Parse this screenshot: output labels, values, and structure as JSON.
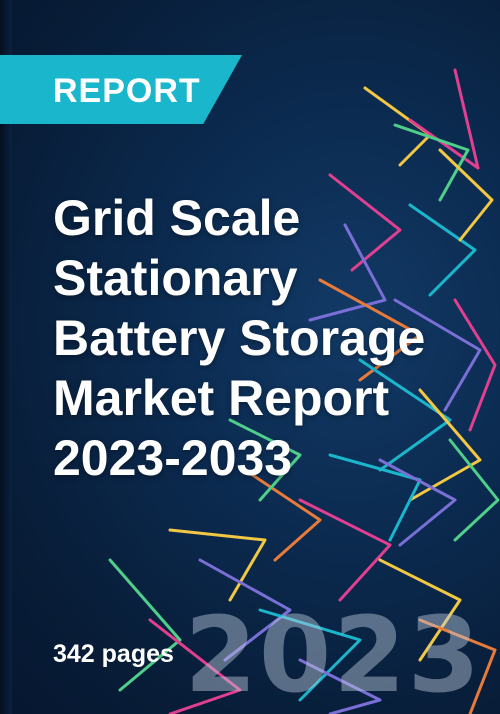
{
  "tag": {
    "label": "REPORT"
  },
  "title": {
    "lines": [
      "Grid Scale",
      "Stationary",
      "Battery Storage",
      "Market Report",
      "2023-2033"
    ]
  },
  "pages": "342 pages",
  "year": "2023",
  "colors": {
    "background": "#0b2a4f",
    "tag": "#1ab7cc",
    "lines": [
      "#f2c744",
      "#e0408f",
      "#1ab7cc",
      "#7a6fd6",
      "#4fcf8a",
      "#e87a3a"
    ]
  }
}
